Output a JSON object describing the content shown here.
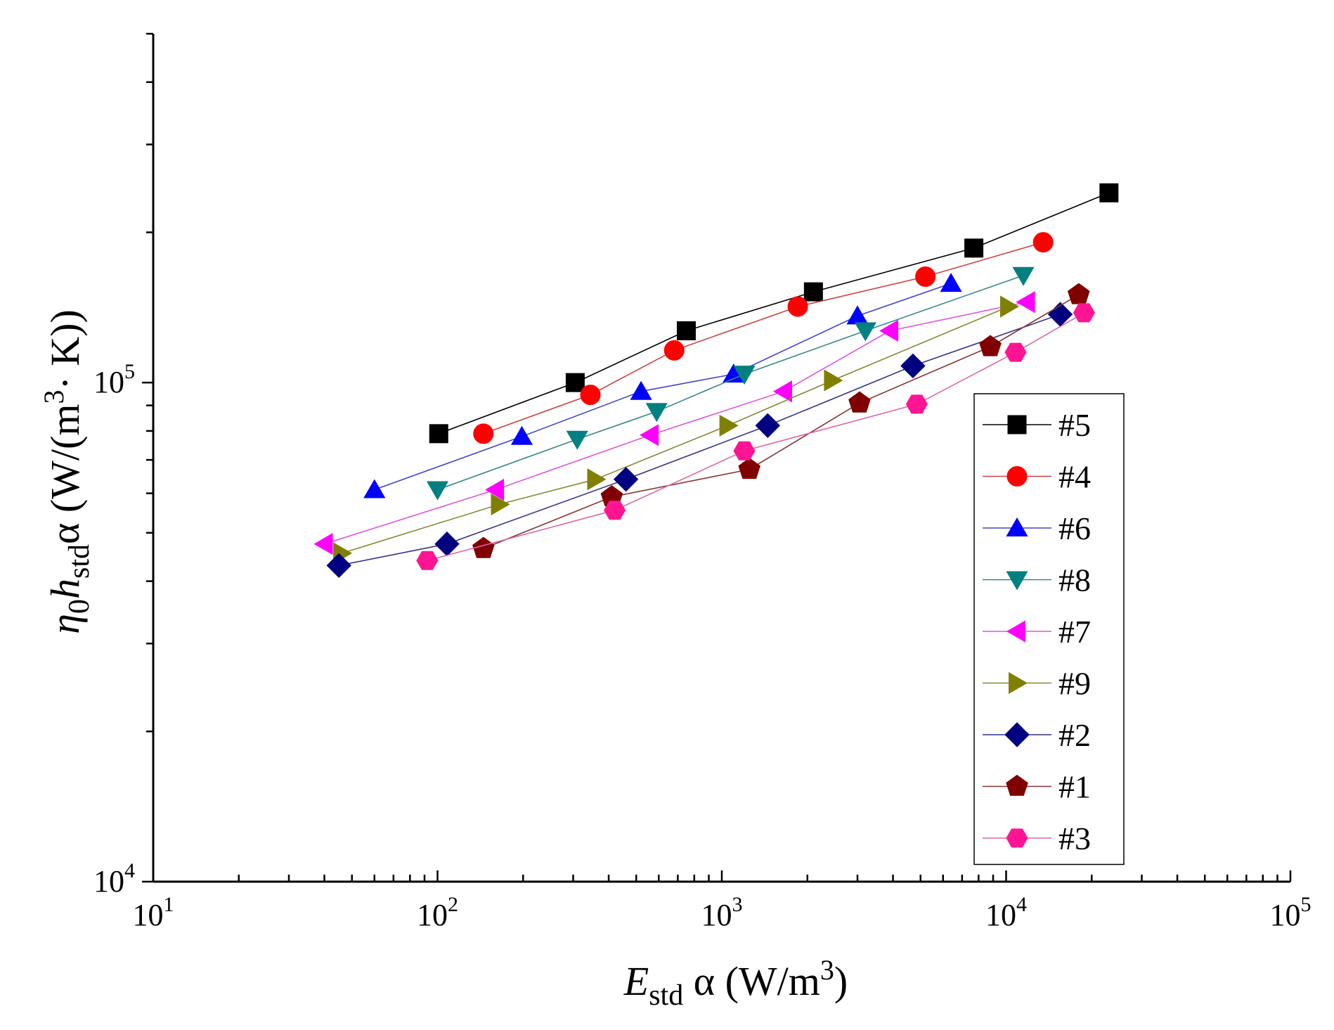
{
  "chart_data": {
    "type": "scatter",
    "title": "",
    "xscale": "log",
    "yscale": "log",
    "xlim": [
      10,
      100000
    ],
    "ylim": [
      10000,
      500000
    ],
    "grid": false,
    "legend_position": "right",
    "xlabel": {
      "main": "E",
      "sub": "std",
      "rest": " α (W/m",
      "sup": "3",
      "close": ")"
    },
    "ylabel": {
      "eta": "η",
      "eta_sub": "0",
      "h": "h",
      "h_sub": "std",
      "rest": "α (W/(m",
      "sup": "3",
      "close": "· K))"
    },
    "x_ticks": [
      {
        "value": 10,
        "base": "10",
        "exp": "1"
      },
      {
        "value": 100,
        "base": "10",
        "exp": "2"
      },
      {
        "value": 1000,
        "base": "10",
        "exp": "3"
      },
      {
        "value": 10000,
        "base": "10",
        "exp": "4"
      },
      {
        "value": 100000,
        "base": "10",
        "exp": "5"
      }
    ],
    "y_ticks": [
      {
        "value": 10000,
        "base": "10",
        "exp": "4"
      },
      {
        "value": 100000,
        "base": "10",
        "exp": "5"
      }
    ],
    "series": [
      {
        "name": "#5",
        "marker": "square",
        "color": "#000000",
        "line_color": "#000000",
        "x": [
          101,
          305,
          750,
          2100,
          7700,
          23000
        ],
        "y": [
          79000,
          100000,
          127000,
          152000,
          186000,
          240000
        ]
      },
      {
        "name": "#4",
        "marker": "circle",
        "color": "#ff0000",
        "line_color": "#cc4444",
        "x": [
          145,
          345,
          680,
          1850,
          5200,
          13500
        ],
        "y": [
          79000,
          94500,
          116000,
          142000,
          163000,
          191000
        ]
      },
      {
        "name": "#6",
        "marker": "triangle-up",
        "color": "#0000ff",
        "line_color": "#4444cc",
        "x": [
          60,
          198,
          520,
          1100,
          3000,
          6400
        ],
        "y": [
          61000,
          78000,
          96000,
          104000,
          136000,
          158000
        ]
      },
      {
        "name": "#8",
        "marker": "triangle-down",
        "color": "#008080",
        "line_color": "#338888",
        "x": [
          100,
          310,
          590,
          1200,
          3200,
          11500
        ],
        "y": [
          61000,
          77000,
          87500,
          104000,
          127000,
          164000
        ]
      },
      {
        "name": "#7",
        "marker": "triangle-left",
        "color": "#ff00ff",
        "line_color": "#dd55dd",
        "x": [
          40,
          160,
          560,
          1650,
          3900,
          11800
        ],
        "y": [
          47500,
          61000,
          78500,
          96000,
          127000,
          145000
        ]
      },
      {
        "name": "#9",
        "marker": "triangle-right",
        "color": "#808000",
        "line_color": "#888833",
        "x": [
          46,
          165,
          360,
          1050,
          2450,
          10200
        ],
        "y": [
          45500,
          57000,
          64000,
          82000,
          101000,
          142000
        ]
      },
      {
        "name": "#2",
        "marker": "diamond",
        "color": "#000080",
        "line_color": "#333388",
        "x": [
          45,
          108,
          460,
          1450,
          4700,
          15500
        ],
        "y": [
          43000,
          47500,
          64000,
          82000,
          108000,
          137000
        ]
      },
      {
        "name": "#1",
        "marker": "pentagon",
        "color": "#800000",
        "line_color": "#883333",
        "x": [
          145,
          410,
          1250,
          3050,
          8800,
          18000
        ],
        "y": [
          46500,
          59000,
          67000,
          91000,
          118000,
          150000
        ]
      },
      {
        "name": "#3",
        "marker": "hexagon",
        "color": "#ff1493",
        "line_color": "#dd66aa",
        "x": [
          92,
          420,
          1200,
          4850,
          10800,
          18800
        ],
        "y": [
          44000,
          55500,
          73000,
          90500,
          115000,
          138000
        ]
      }
    ]
  }
}
